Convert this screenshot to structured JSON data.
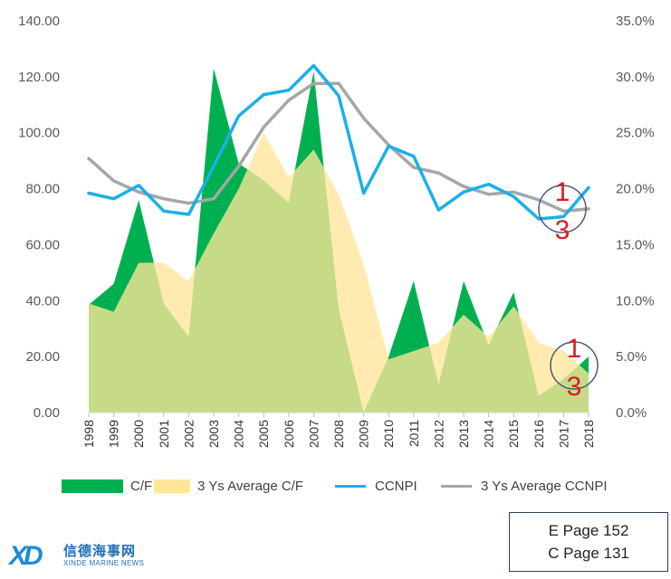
{
  "chart_data": {
    "type": "area+line",
    "title": "",
    "xlabel": "",
    "ylabel": "",
    "ylim_left": [
      0,
      140
    ],
    "ylim_right": [
      0,
      0.35
    ],
    "yticks_left": [
      "0.00",
      "20.00",
      "40.00",
      "60.00",
      "80.00",
      "100.00",
      "120.00",
      "140.00"
    ],
    "yticks_right": [
      "0.0%",
      "5.0%",
      "10.0%",
      "15.0%",
      "20.0%",
      "25.0%",
      "30.0%",
      "35.0%"
    ],
    "categories": [
      "1998",
      "1999",
      "2000",
      "2001",
      "2002",
      "2003",
      "2004",
      "2005",
      "2006",
      "2007",
      "2008",
      "2009",
      "2010",
      "2011",
      "2012",
      "2013",
      "2014",
      "2015",
      "2016",
      "2017",
      "2018"
    ],
    "series": [
      {
        "name": "C/F",
        "kind": "area",
        "axis": "left",
        "color": "#00b050",
        "values": [
          38.5,
          46,
          76,
          39,
          27,
          123,
          89,
          83,
          75,
          122,
          37,
          0,
          20,
          47,
          10,
          47,
          24,
          43,
          6,
          12,
          20
        ]
      },
      {
        "name": "3 Ys Average C/F",
        "kind": "area",
        "axis": "left",
        "color": "#ffe699",
        "values": [
          39,
          36,
          53.5,
          53.5,
          47,
          64,
          80,
          100,
          84,
          94,
          78,
          53,
          19,
          22,
          25,
          35,
          27,
          38,
          25,
          22,
          14
        ]
      },
      {
        "name": "CCNPI",
        "kind": "line",
        "axis": "right",
        "color": "#1ab0e8",
        "values": [
          0.196,
          0.191,
          0.203,
          0.18,
          0.177,
          0.22,
          0.265,
          0.284,
          0.288,
          0.31,
          0.283,
          0.196,
          0.238,
          0.229,
          0.181,
          0.197,
          0.204,
          0.193,
          0.173,
          0.175,
          0.201
        ]
      },
      {
        "name": "3 Ys Average CCNPI",
        "kind": "line",
        "axis": "right",
        "color": "#a6a6a6",
        "values": [
          0.227,
          0.207,
          0.197,
          0.191,
          0.187,
          0.191,
          0.22,
          0.255,
          0.279,
          0.294,
          0.294,
          0.263,
          0.239,
          0.219,
          0.214,
          0.202,
          0.195,
          0.197,
          0.19,
          0.18,
          0.182
        ]
      }
    ],
    "annotations": [
      "1",
      "3",
      "1",
      "3"
    ],
    "legend_position": "bottom",
    "grid": false
  },
  "legend": [
    {
      "label": "C/F",
      "color": "#00b050"
    },
    {
      "label": "3 Ys Average C/F",
      "color": "#ffe699"
    },
    {
      "label": "CCNPI",
      "color": "#1ab0e8"
    },
    {
      "label": "3 Ys Average CCNPI",
      "color": "#a6a6a6"
    }
  ],
  "page_ref": {
    "line1": "E Page 152",
    "line2": "C Page 131"
  },
  "logo": {
    "mark": "XD",
    "cn": "信德海事网",
    "en": "XINDE MARINE NEWS"
  }
}
